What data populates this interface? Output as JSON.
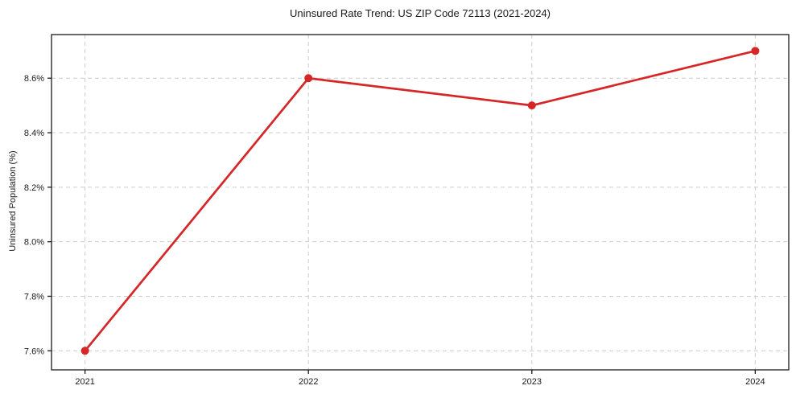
{
  "chart_data": {
    "type": "line",
    "title": "Uninsured Rate Trend: US ZIP Code 72113 (2021-2024)",
    "xlabel": "",
    "ylabel": "Uninsured Population (%)",
    "categories": [
      2021,
      2022,
      2023,
      2024
    ],
    "xtick_labels": [
      "2021",
      "2022",
      "2023",
      "2024"
    ],
    "series": [
      {
        "name": "Uninsured Rate",
        "values": [
          7.6,
          8.6,
          8.5,
          8.7
        ]
      }
    ],
    "ytick_values": [
      7.6,
      7.8,
      8.0,
      8.2,
      8.4,
      8.6
    ],
    "ytick_labels": [
      "7.6%",
      "7.8%",
      "8.0%",
      "8.2%",
      "8.4%",
      "8.6%"
    ],
    "xlim": [
      2020.85,
      2024.15
    ],
    "ylim": [
      7.53,
      8.76
    ],
    "grid": true,
    "grid_style": "dashed",
    "legend": false,
    "colors": {
      "line": "#d62728",
      "marker": "#d62728",
      "grid": "#cccccc",
      "spine": "#1a1a1a",
      "text": "#1a1a1a",
      "background": "#ffffff"
    }
  }
}
